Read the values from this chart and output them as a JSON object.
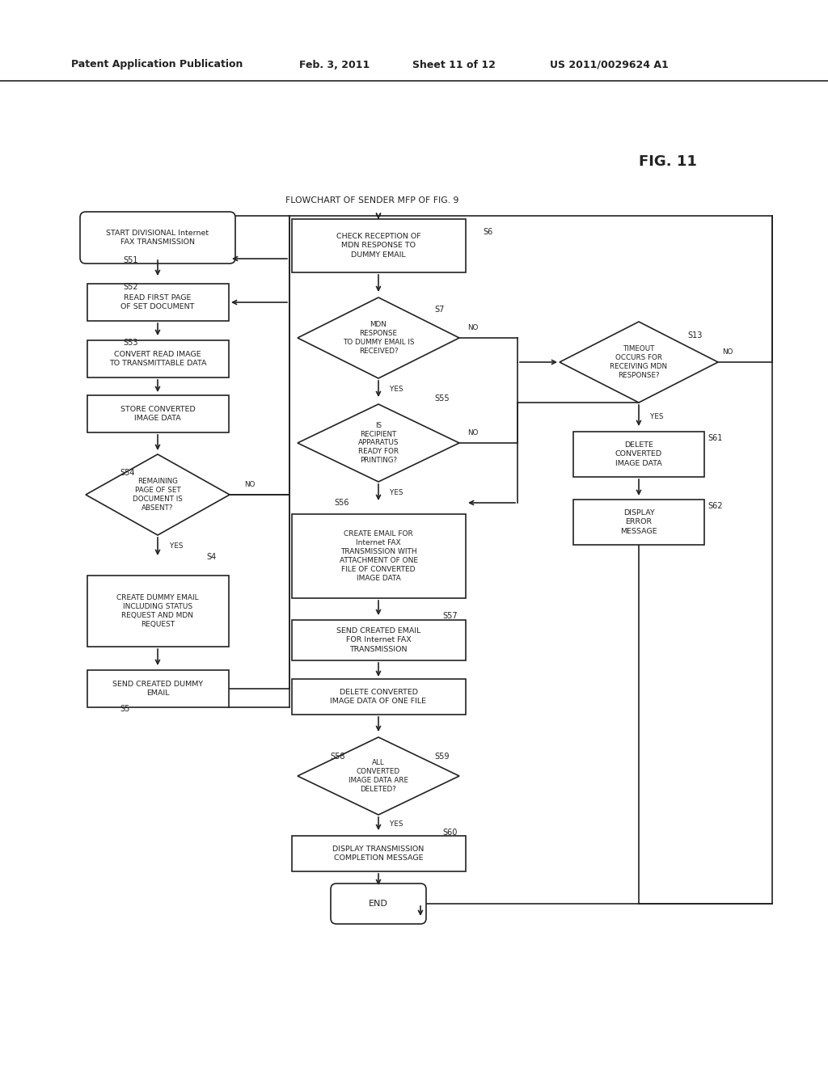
{
  "title": "FLOWCHART OF SENDER MFP OF FIG. 9",
  "fig_label": "FIG. 11",
  "header_left": "Patent Application Publication",
  "header_date": "Feb. 3, 2011",
  "header_sheet": "Sheet 11 of 12",
  "header_patent": "US 2011/0029624 A1",
  "bg_color": "#ffffff",
  "lc": "#222222",
  "tc": "#222222"
}
